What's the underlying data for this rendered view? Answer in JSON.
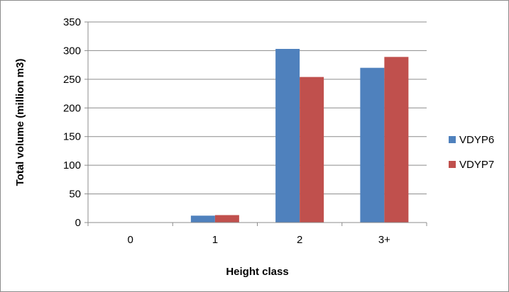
{
  "chart_data": {
    "type": "bar",
    "title": "",
    "xlabel": "Height class",
    "ylabel": "Total volume (million m3)",
    "categories": [
      "0",
      "1",
      "2",
      "3+"
    ],
    "ylim": [
      0,
      350
    ],
    "yticks": [
      0,
      50,
      100,
      150,
      200,
      250,
      300,
      350
    ],
    "grid": true,
    "legend_position": "right",
    "series": [
      {
        "name": "VDYP6",
        "color": "#4f81bd",
        "values": [
          0,
          12,
          303,
          270
        ]
      },
      {
        "name": "VDYP7",
        "color": "#c0504d",
        "values": [
          0,
          13,
          254,
          289
        ]
      }
    ]
  }
}
